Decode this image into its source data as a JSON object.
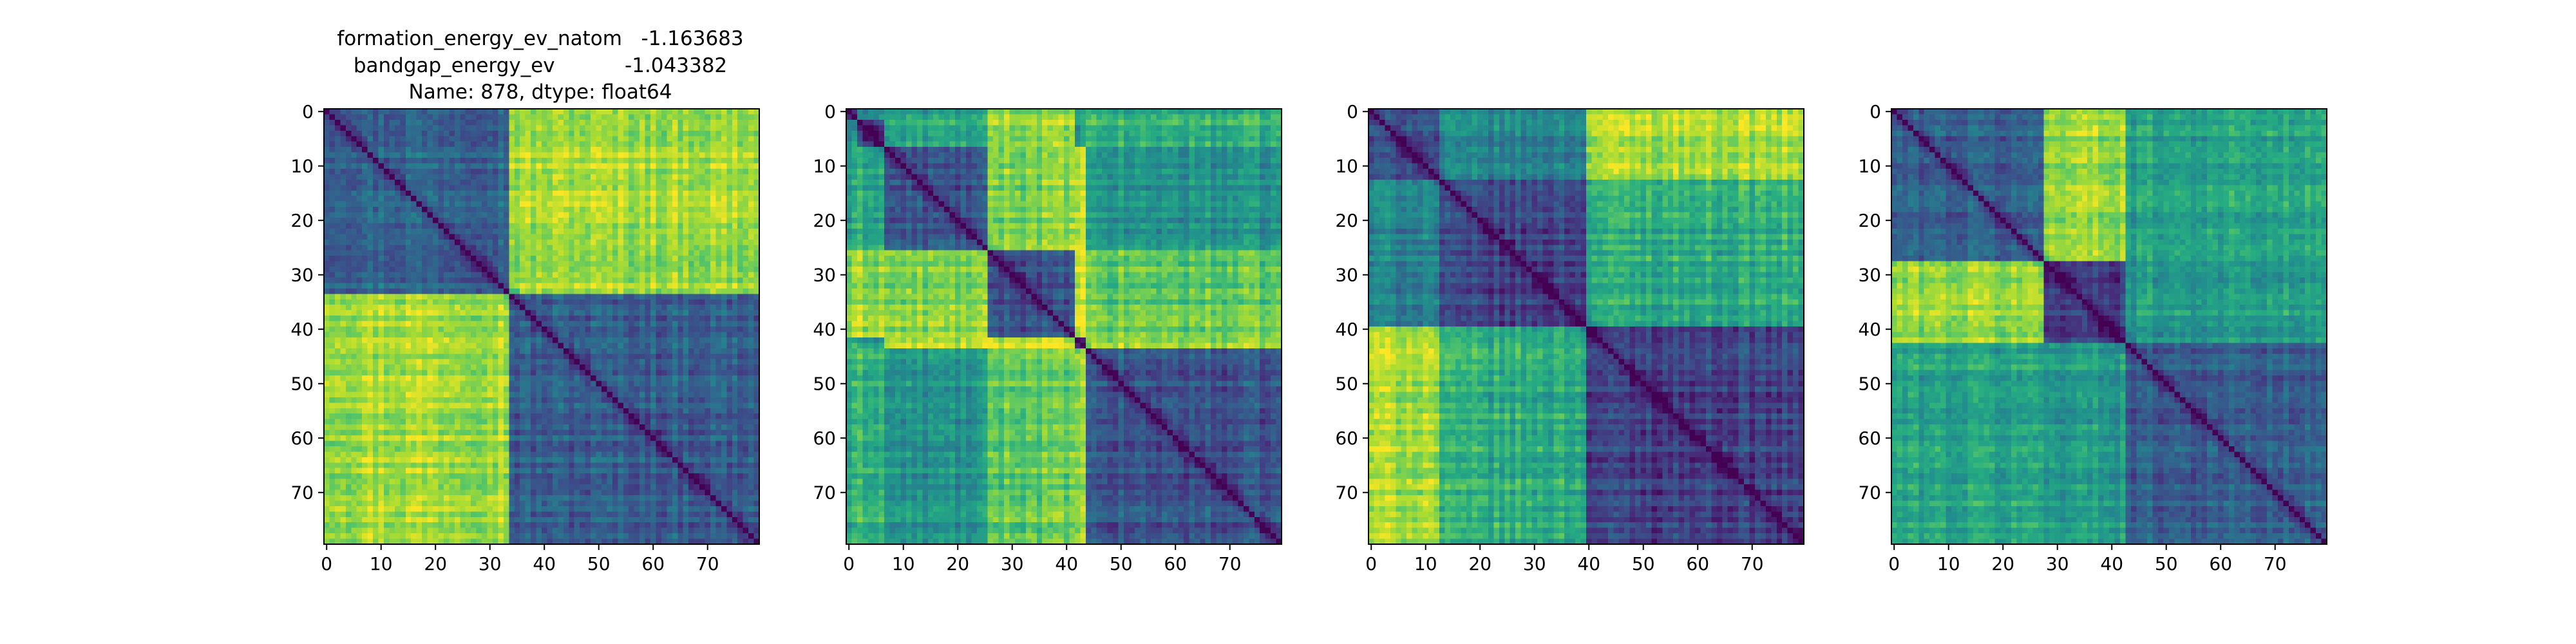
{
  "figure_title": {
    "lines": [
      "formation_energy_ev_natom   -1.163683",
      "bandgap_energy_ev           -1.043382",
      "Name: 878, dtype: float64"
    ]
  },
  "colormap": {
    "name": "viridis",
    "stops": [
      "#440154",
      "#472c7a",
      "#3b518b",
      "#2c718e",
      "#21908d",
      "#27ad81",
      "#5cc863",
      "#aadc32",
      "#fde725"
    ]
  },
  "chart_data": [
    {
      "type": "heatmap",
      "n": 80,
      "xticks": [
        0,
        10,
        20,
        30,
        40,
        50,
        60,
        70
      ],
      "yticks": [
        0,
        10,
        20,
        30,
        40,
        50,
        60,
        70
      ],
      "clusters": [
        {
          "start": 0,
          "end": 34
        },
        {
          "start": 34,
          "end": 80
        }
      ],
      "block_levels": [
        [
          0.35,
          0.88
        ],
        [
          0.88,
          0.3
        ]
      ]
    },
    {
      "type": "heatmap",
      "n": 80,
      "xticks": [
        0,
        10,
        20,
        30,
        40,
        50,
        60,
        70
      ],
      "yticks": [
        0,
        10,
        20,
        30,
        40,
        50,
        60,
        70
      ],
      "clusters": [
        {
          "start": 0,
          "end": 2
        },
        {
          "start": 2,
          "end": 7
        },
        {
          "start": 7,
          "end": 26
        },
        {
          "start": 26,
          "end": 42
        },
        {
          "start": 42,
          "end": 44
        },
        {
          "start": 44,
          "end": 80
        }
      ],
      "block_levels": [
        [
          0.2,
          0.5,
          0.55,
          0.8,
          0.6,
          0.6
        ],
        [
          0.5,
          0.2,
          0.6,
          0.85,
          0.55,
          0.65
        ],
        [
          0.55,
          0.6,
          0.25,
          0.8,
          0.9,
          0.5
        ],
        [
          0.8,
          0.85,
          0.8,
          0.25,
          0.95,
          0.75
        ],
        [
          0.6,
          0.55,
          0.9,
          0.95,
          0.2,
          0.85
        ],
        [
          0.6,
          0.65,
          0.5,
          0.75,
          0.85,
          0.25
        ]
      ]
    },
    {
      "type": "heatmap",
      "n": 80,
      "xticks": [
        0,
        10,
        20,
        30,
        40,
        50,
        60,
        70
      ],
      "yticks": [
        0,
        10,
        20,
        30,
        40,
        50,
        60,
        70
      ],
      "clusters": [
        {
          "start": 0,
          "end": 13
        },
        {
          "start": 13,
          "end": 40
        },
        {
          "start": 40,
          "end": 80
        }
      ],
      "block_levels": [
        [
          0.25,
          0.45,
          0.88
        ],
        [
          0.45,
          0.2,
          0.62
        ],
        [
          0.88,
          0.62,
          0.2
        ]
      ]
    },
    {
      "type": "heatmap",
      "n": 80,
      "xticks": [
        0,
        10,
        20,
        30,
        40,
        50,
        60,
        70
      ],
      "yticks": [
        0,
        10,
        20,
        30,
        40,
        50,
        60,
        70
      ],
      "clusters": [
        {
          "start": 0,
          "end": 28
        },
        {
          "start": 28,
          "end": 43
        },
        {
          "start": 43,
          "end": 80
        }
      ],
      "block_levels": [
        [
          0.3,
          0.85,
          0.58
        ],
        [
          0.85,
          0.2,
          0.55
        ],
        [
          0.58,
          0.55,
          0.3
        ]
      ]
    }
  ]
}
